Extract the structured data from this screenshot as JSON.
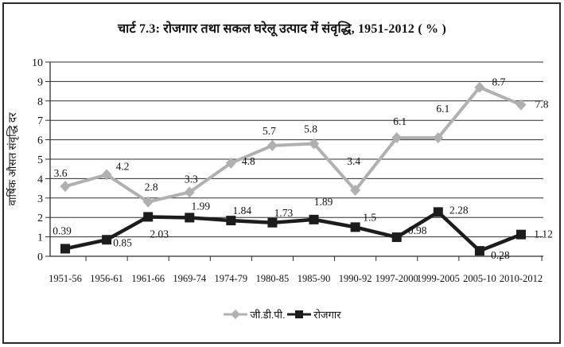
{
  "title": "चार्ट 7.3: रोजगार तथा सकल घरेलू उत्पाद में संवृद्धि, 1951-2012 ( % )",
  "colors": {
    "gdp_line": "#b0b0b0",
    "employment_line": "#1c1c1c",
    "grid": "#2e2e2e",
    "axis": "#2e2e2e",
    "text": "#111111",
    "border": "#2b2b2b",
    "background": "#ffffff"
  },
  "chart_data": {
    "type": "line",
    "title": "चार्ट 7.3: रोजगार तथा सकल घरेलू उत्पाद में संवृद्धि, 1951-2012 ( % )",
    "xlabel": "",
    "ylabel": "वार्षिक औसत संवृद्धि दर",
    "ylim": [
      0,
      10
    ],
    "yticks": [
      0,
      1,
      2,
      3,
      4,
      5,
      6,
      7,
      8,
      9,
      10
    ],
    "grid": true,
    "legend_position": "bottom-center",
    "categories": [
      "1951-56",
      "1956-61",
      "1961-66",
      "1969-74",
      "1974-79",
      "1980-85",
      "1985-90",
      "1990-92",
      "1997-2000",
      "1999-2005",
      "2005-10",
      "2010-2012"
    ],
    "series": [
      {
        "name": "जी.डी.पी.",
        "marker": "diamond",
        "color": "#b0b0b0",
        "values": [
          3.6,
          4.2,
          2.8,
          3.3,
          4.8,
          5.7,
          5.8,
          3.4,
          6.1,
          6.1,
          8.7,
          7.8
        ],
        "label_offsets": [
          [
            -6,
            -12
          ],
          [
            20,
            -6
          ],
          [
            4,
            -14
          ],
          [
            2,
            -12
          ],
          [
            22,
            2
          ],
          [
            -4,
            -14
          ],
          [
            -4,
            -14
          ],
          [
            -2,
            -32
          ],
          [
            4,
            -16
          ],
          [
            6,
            -32
          ],
          [
            24,
            -2
          ],
          [
            26,
            4
          ]
        ]
      },
      {
        "name": "रोजगार",
        "marker": "square",
        "color": "#1c1c1c",
        "values": [
          0.39,
          0.85,
          2.03,
          1.99,
          1.84,
          1.73,
          1.89,
          1.5,
          0.98,
          2.28,
          0.28,
          1.12
        ],
        "label_offsets": [
          [
            -4,
            -18
          ],
          [
            20,
            8
          ],
          [
            14,
            26
          ],
          [
            14,
            -10
          ],
          [
            14,
            -8
          ],
          [
            14,
            -8
          ],
          [
            12,
            -18
          ],
          [
            18,
            -8
          ],
          [
            26,
            -4
          ],
          [
            26,
            2
          ],
          [
            26,
            10
          ],
          [
            28,
            4
          ]
        ]
      }
    ]
  },
  "legend": {
    "items": [
      {
        "label": "जी.डी.पी."
      },
      {
        "label": "रोजगार"
      }
    ]
  }
}
